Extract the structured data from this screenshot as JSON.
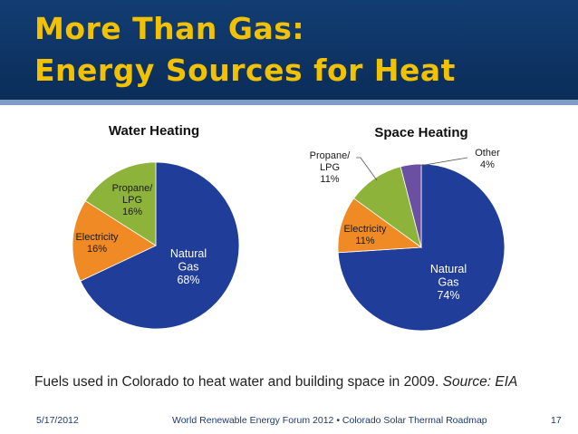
{
  "slide": {
    "title_line1": "More Than Gas:",
    "title_line2": "Energy Sources for Heat",
    "caption": "Fuels used in Colorado to heat water and building space in 2009.",
    "caption_source": "Source: EIA",
    "footer_date": "5/17/2012",
    "footer_center": "World Renewable Energy Forum 2012  •  Colorado Solar Thermal Roadmap",
    "footer_page": "17"
  },
  "colors": {
    "natural_gas": "#1f3d99",
    "electricity": "#f08a24",
    "propane": "#8db33b",
    "other": "#6a4fa3",
    "header": "#0e3566",
    "title": "#f2c200"
  },
  "chart_data": [
    {
      "type": "pie",
      "title": "Water Heating",
      "slices": [
        {
          "label": "Natural Gas",
          "label_lines": [
            "Natural",
            "Gas"
          ],
          "value": 68,
          "value_text": "68%",
          "color": "#1f3d99"
        },
        {
          "label": "Electricity",
          "label_lines": [
            "Electricity"
          ],
          "value": 16,
          "value_text": "16%",
          "color": "#f08a24"
        },
        {
          "label": "Propane/ LPG",
          "label_lines": [
            "Propane/",
            "LPG"
          ],
          "value": 16,
          "value_text": "16%",
          "color": "#8db33b"
        }
      ]
    },
    {
      "type": "pie",
      "title": "Space Heating",
      "slices": [
        {
          "label": "Natural Gas",
          "label_lines": [
            "Natural",
            "Gas"
          ],
          "value": 74,
          "value_text": "74%",
          "color": "#1f3d99"
        },
        {
          "label": "Electricity",
          "label_lines": [
            "Electricity"
          ],
          "value": 11,
          "value_text": "11%",
          "color": "#f08a24"
        },
        {
          "label": "Propane/ LPG",
          "label_lines": [
            "Propane/",
            "LPG"
          ],
          "value": 11,
          "value_text": "11%",
          "color": "#8db33b"
        },
        {
          "label": "Other",
          "label_lines": [
            "Other"
          ],
          "value": 4,
          "value_text": "4%",
          "color": "#6a4fa3"
        }
      ]
    }
  ]
}
